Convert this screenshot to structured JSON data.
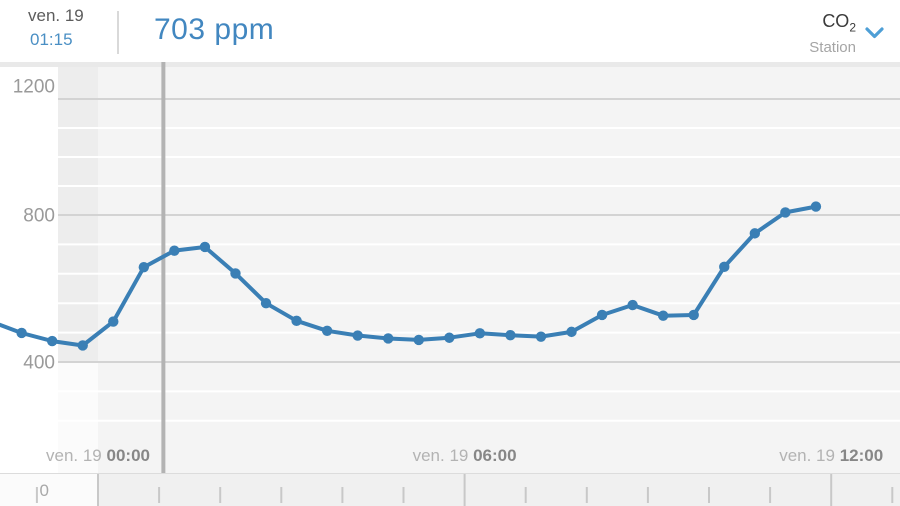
{
  "header": {
    "date_label": "ven. 19",
    "time_label": "01:15",
    "value_label": "703 ppm",
    "measure_main": "CO",
    "measure_sub": "2",
    "module_label": "Station"
  },
  "chart_data": {
    "type": "line",
    "title": "CO2 concentration over time",
    "series_name": "CO2",
    "unit": "ppm",
    "legend": "none",
    "grid": "on",
    "y_axis": {
      "ticks": [
        400,
        800,
        1200
      ],
      "minor_gridlines": [
        240,
        320,
        480,
        560,
        640,
        720,
        900,
        1000,
        1100
      ],
      "range": [
        240,
        1240
      ]
    },
    "x_axis": {
      "labels": [
        {
          "date": "ven. 19",
          "time": "00:00",
          "hours": 0
        },
        {
          "date": "ven. 19",
          "time": "06:00",
          "hours": 6
        },
        {
          "date": "ven. 19",
          "time": "12:00",
          "hours": 12
        }
      ],
      "hour_tick_interval": 1,
      "major_tick_hours": [
        0,
        6,
        12
      ],
      "range_hours": [
        -1.6,
        13.1
      ]
    },
    "points": [
      {
        "t": "22:15",
        "v": 510
      },
      {
        "t": "22:45",
        "v": 479
      },
      {
        "t": "23:15",
        "v": 457
      },
      {
        "t": "23:45",
        "v": 445
      },
      {
        "t": "00:15",
        "v": 510
      },
      {
        "t": "00:45",
        "v": 658
      },
      {
        "t": "01:15",
        "v": 703
      },
      {
        "t": "01:45",
        "v": 713
      },
      {
        "t": "02:15",
        "v": 641
      },
      {
        "t": "02:45",
        "v": 560
      },
      {
        "t": "03:15",
        "v": 512
      },
      {
        "t": "03:45",
        "v": 485
      },
      {
        "t": "04:15",
        "v": 472
      },
      {
        "t": "04:45",
        "v": 464
      },
      {
        "t": "05:15",
        "v": 460
      },
      {
        "t": "05:45",
        "v": 466
      },
      {
        "t": "06:15",
        "v": 478
      },
      {
        "t": "06:45",
        "v": 473
      },
      {
        "t": "07:15",
        "v": 469
      },
      {
        "t": "07:45",
        "v": 482
      },
      {
        "t": "08:15",
        "v": 528
      },
      {
        "t": "08:45",
        "v": 555
      },
      {
        "t": "09:15",
        "v": 526
      },
      {
        "t": "09:45",
        "v": 528
      },
      {
        "t": "10:15",
        "v": 659
      },
      {
        "t": "10:45",
        "v": 750
      },
      {
        "t": "11:15",
        "v": 809
      },
      {
        "t": "11:45",
        "v": 829
      }
    ],
    "cursor": {
      "date": "ven. 19",
      "time": "01:15",
      "value": 703,
      "value_label": "703 ppm"
    },
    "secondary_axis_zero_label": "0",
    "colors": {
      "line": "#3a7fb5",
      "accent_blue": "#4a8fc4",
      "cursor": "#b3b3b3",
      "plot_bg": "#f4f4f4",
      "minor_grid": "#ffffff",
      "major_grid": "#d3d3d3",
      "y_label": "#9a9a9a",
      "x_label_date": "#b3b3b3",
      "x_label_time": "#878787",
      "tick": "#c8c8c8"
    }
  }
}
